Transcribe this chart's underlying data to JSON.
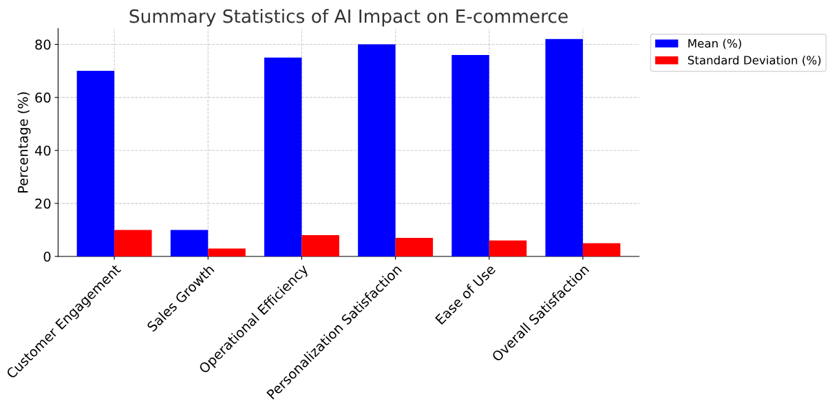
{
  "chart_data": {
    "type": "bar",
    "title": "Summary Statistics of AI Impact on E-commerce",
    "ylabel": "Percentage (%)",
    "categories": [
      "Customer Engagement",
      "Sales Growth",
      "Operational Efficiency",
      "Personalization Satisfaction",
      "Ease of Use",
      "Overall Satisfaction"
    ],
    "series": [
      {
        "name": "Mean (%)",
        "color": "#0000ff",
        "values": [
          70,
          10,
          75,
          80,
          76,
          82
        ]
      },
      {
        "name": "Standard Deviation (%)",
        "color": "#ff0000",
        "values": [
          10,
          3,
          8,
          7,
          6,
          5
        ]
      }
    ],
    "ylim": [
      0,
      86
    ],
    "yticks": [
      0,
      20,
      40,
      60,
      80
    ],
    "grid": true,
    "legend": "right"
  }
}
